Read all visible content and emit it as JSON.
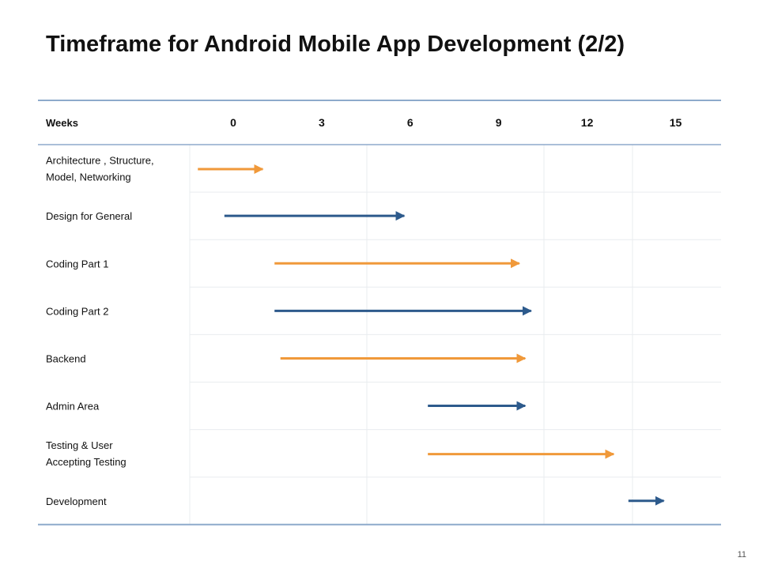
{
  "slide": {
    "title": "Timeframe for Android Mobile App Development (2/2)",
    "page_number": "11"
  },
  "colors": {
    "header_rule": "#8eaacb",
    "grid": "#e9ecef",
    "orange": "#f0993a",
    "blue": "#2d5a8c",
    "text": "#111111"
  },
  "chart_data": {
    "type": "gantt",
    "title": "Timeframe for Android Mobile App Development (2/2)",
    "header_label": "Weeks",
    "ticks": [
      0,
      3,
      6,
      9,
      12,
      15
    ],
    "tick_labels": [
      "0",
      "3",
      "6",
      "9",
      "12",
      "15"
    ],
    "x_unit": "weeks",
    "tasks": [
      {
        "label_lines": [
          "Architecture , Structure,",
          "Model, Networking"
        ],
        "start": -1.2,
        "end": 1.0,
        "color": "orange"
      },
      {
        "label_lines": [
          "Design for General"
        ],
        "start": -0.3,
        "end": 5.8,
        "color": "blue"
      },
      {
        "label_lines": [
          "Coding Part 1"
        ],
        "start": 1.4,
        "end": 9.7,
        "color": "orange"
      },
      {
        "label_lines": [
          "Coding Part 2"
        ],
        "start": 1.4,
        "end": 10.1,
        "color": "blue"
      },
      {
        "label_lines": [
          "Backend"
        ],
        "start": 1.6,
        "end": 9.9,
        "color": "orange"
      },
      {
        "label_lines": [
          "Admin Area"
        ],
        "start": 6.6,
        "end": 9.9,
        "color": "blue"
      },
      {
        "label_lines": [
          "Testing & User",
          "Accepting Testing"
        ],
        "start": 6.6,
        "end": 12.9,
        "color": "orange"
      },
      {
        "label_lines": [
          "Development"
        ],
        "start": 13.4,
        "end": 14.6,
        "color": "blue"
      }
    ]
  }
}
